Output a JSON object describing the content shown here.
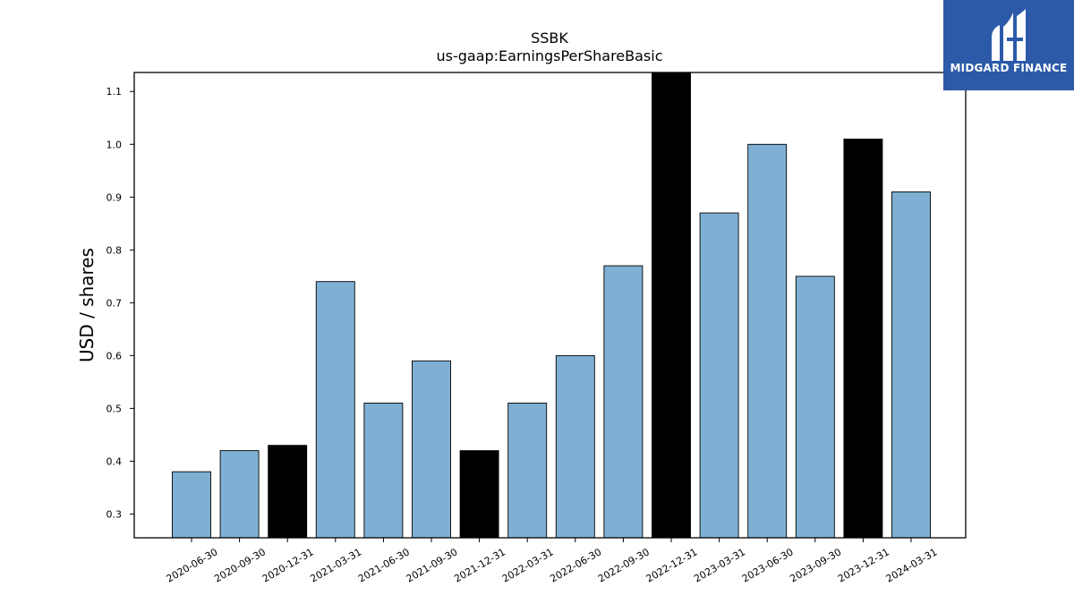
{
  "chart_data": {
    "type": "bar",
    "title": "SSBK",
    "subtitle": "us-gaap:EarningsPerShareBasic",
    "xlabel": "",
    "ylabel": "USD / shares",
    "categories": [
      "2020-06-30",
      "2020-09-30",
      "2020-12-31",
      "2021-03-31",
      "2021-06-30",
      "2021-09-30",
      "2021-12-31",
      "2022-03-31",
      "2022-06-30",
      "2022-09-30",
      "2022-12-31",
      "2023-03-31",
      "2023-06-30",
      "2023-09-30",
      "2023-12-31",
      "2024-03-31"
    ],
    "values": [
      0.38,
      0.42,
      0.43,
      0.74,
      0.51,
      0.59,
      0.42,
      0.51,
      0.6,
      0.77,
      1.14,
      0.87,
      1.0,
      0.75,
      1.01,
      0.91
    ],
    "highlight": [
      false,
      false,
      true,
      false,
      false,
      false,
      true,
      false,
      false,
      false,
      true,
      false,
      false,
      false,
      true,
      false
    ],
    "colors": {
      "bar": "#7fb0d3",
      "highlight": "#000000",
      "edge": "#000000"
    },
    "yticks": [
      0.3,
      0.4,
      0.5,
      0.6,
      0.7,
      0.8,
      0.9,
      1.0,
      1.1
    ],
    "ytick_labels": [
      "0.3",
      "0.4",
      "0.5",
      "0.6",
      "0.7",
      "0.8",
      "0.9",
      "1.0",
      "1.1"
    ],
    "ylim": [
      0.255,
      1.136
    ],
    "grid": false,
    "legend": "none"
  },
  "logo": {
    "text": "MIDGARD FINANCE",
    "color": "#2c5aa8"
  }
}
